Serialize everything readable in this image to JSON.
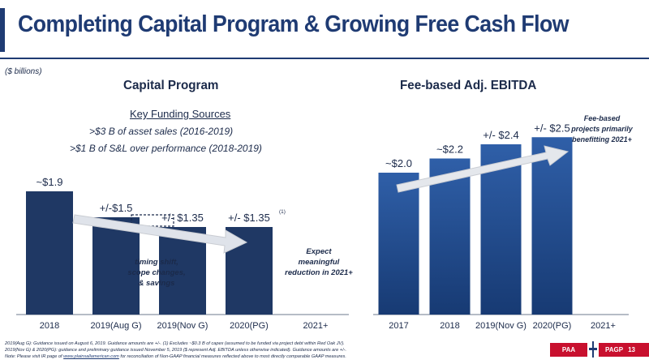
{
  "title": "Completing Capital Program & Growing Free Cash Flow",
  "units": "($ billions)",
  "capital": {
    "heading": "Capital Program",
    "key_title": "Key Funding Sources",
    "key_lines": [
      ">$3 B of asset sales (2016-2019)",
      ">$1 B of S&L over performance (2018-2019)"
    ],
    "note": [
      "timing shift,",
      "scope changes,",
      "& savings"
    ],
    "expect": [
      "Expect",
      "meaningful",
      "reduction in 2021+"
    ],
    "footnote_marker": "(1)"
  },
  "ebitda": {
    "heading": "Fee-based Adj. EBITDA",
    "note": [
      "Fee-based",
      "projects primarily",
      "benefitting 2021+"
    ]
  },
  "chart_data": [
    {
      "type": "bar",
      "title": "Capital Program",
      "categories": [
        "2018",
        "2019(Aug G)",
        "2019(Nov G)",
        "2020(PG)",
        "2021+"
      ],
      "values": [
        1.9,
        1.5,
        1.35,
        1.35,
        null
      ],
      "data_labels": [
        "~$1.9",
        "+/-$1.5",
        "+/- $1.35",
        "+/- $1.35",
        ""
      ],
      "colors": {
        "bar": "#1f3864"
      }
    },
    {
      "type": "bar",
      "title": "Fee-based Adj. EBITDA",
      "categories": [
        "2017",
        "2018",
        "2019(Nov G)",
        "2020(PG)",
        "2021+"
      ],
      "values": [
        2.0,
        2.2,
        2.4,
        2.5,
        null
      ],
      "data_labels": [
        "~$2.0",
        "~$2.2",
        "+/- $2.4",
        "+/- $2.5",
        ""
      ],
      "colors": {
        "bar_top": "#2f5fa8",
        "bar_bottom": "#173a73"
      }
    }
  ],
  "footnote": {
    "line1": "2019(Aug G): Guidance issued on August 6, 2019. Guidance amounts are +/-. (1) Excludes ~$0.3 B of capex (assumed to be funded via project debt within Red Oak JV).",
    "line2": "2019(Nov G) & 2020(PG): guidance and preliminary guidance issued November 5, 2019 ($ represent Adj. EBITDA unless otherwise indicated). Guidance amounts are +/-.",
    "line3a": "Note: Please visit IR page of ",
    "link": "www.plainsallamerican.com",
    "line3b": " for reconciliation of Non-GAAP financial measures reflected above to most directly comparable GAAP measures."
  },
  "footer": {
    "left_badge": "PAA",
    "right_badge": "PAGP",
    "page": "13"
  }
}
